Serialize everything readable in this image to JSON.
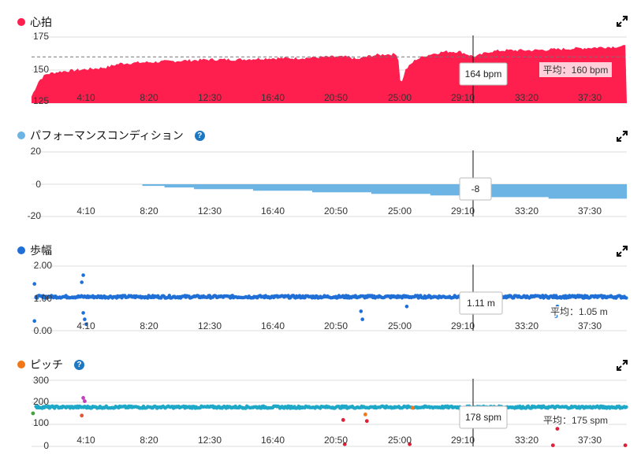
{
  "colors": {
    "hr": "#ff1f4e",
    "perf": "#6cb4e4",
    "stride": "#1f6fd6",
    "cadence": "#f07818",
    "help": "#1d78c4"
  },
  "panels": [
    {
      "title": "心拍",
      "help": false
    },
    {
      "title": "パフォーマンスコンディション",
      "help": true
    },
    {
      "title": "歩幅",
      "help": false
    },
    {
      "title": "ピッチ",
      "help": true
    }
  ],
  "chart_data": [
    {
      "type": "area",
      "title": "心拍",
      "ylim": [
        125,
        175
      ],
      "yticks": [
        "175",
        "150",
        "125"
      ],
      "xticks": [
        "4:10",
        "8:20",
        "12:30",
        "16:40",
        "20:50",
        "25:00",
        "29:10",
        "33:20",
        "37:30"
      ],
      "x_minutes": [
        0,
        0.5,
        1,
        2,
        3,
        4,
        5,
        6,
        8,
        10,
        12,
        14,
        16,
        18,
        20,
        21.5,
        22,
        23,
        24,
        24.8,
        25,
        25.3,
        26,
        27,
        28,
        29,
        30,
        31,
        32,
        34,
        36,
        38,
        40
      ],
      "y": [
        130,
        142,
        147,
        149,
        150,
        151,
        152,
        155,
        156,
        157,
        158,
        158,
        159,
        159,
        160,
        160,
        158,
        161,
        162,
        162,
        138,
        150,
        158,
        162,
        164,
        164,
        160,
        164,
        165,
        165,
        166,
        167,
        168
      ],
      "average_line": 160,
      "average_label": "平均：160 bpm",
      "cursor": {
        "label": "164 bpm"
      }
    },
    {
      "type": "area",
      "title": "パフォーマンスコンディション",
      "ylim": [
        -20,
        20
      ],
      "yticks": [
        "20",
        "0",
        "-20"
      ],
      "xticks": [
        "4:10",
        "8:20",
        "12:30",
        "16:40",
        "20:50",
        "25:00",
        "29:10",
        "33:20",
        "37:30"
      ],
      "x_minutes": [
        6,
        7.5,
        9,
        11,
        15,
        19,
        23,
        27,
        31,
        35,
        40
      ],
      "y": [
        0,
        -1,
        -2,
        -3,
        -4,
        -5,
        -6,
        -7,
        -8,
        -9,
        -9
      ],
      "cursor": {
        "label": "-8"
      }
    },
    {
      "type": "scatter",
      "title": "歩幅",
      "ylim": [
        0,
        2
      ],
      "yticks": [
        "2.00",
        "1.00",
        "0.00"
      ],
      "xticks": [
        "4:10",
        "8:20",
        "12:30",
        "16:40",
        "20:50",
        "25:00",
        "29:10",
        "33:20",
        "37:30"
      ],
      "baseline": 1.05,
      "outliers": [
        {
          "x": 3.4,
          "y": 1.5
        },
        {
          "x": 3.5,
          "y": 1.72
        },
        {
          "x": 3.5,
          "y": 0.55
        },
        {
          "x": 3.6,
          "y": 0.35
        },
        {
          "x": 3.7,
          "y": 0.2
        },
        {
          "x": 0.2,
          "y": 1.45
        },
        {
          "x": 0.2,
          "y": 0.3
        },
        {
          "x": 22.3,
          "y": 0.6
        },
        {
          "x": 22.4,
          "y": 0.35
        },
        {
          "x": 25.4,
          "y": 0.75
        },
        {
          "x": 35.5,
          "y": 0.45
        },
        {
          "x": 35.6,
          "y": 0.75
        }
      ],
      "average_label": "平均：1.05 m",
      "cursor": {
        "label": "1.11 m"
      }
    },
    {
      "type": "scatter",
      "title": "ピッチ",
      "ylim": [
        0,
        300
      ],
      "yticks": [
        "300",
        "200",
        "100",
        "0"
      ],
      "xticks": [
        "4:10",
        "8:20",
        "12:30",
        "16:40",
        "20:50",
        "25:00",
        "29:10",
        "33:20",
        "37:30"
      ],
      "baseline": 178,
      "outliers": [
        {
          "x": 3.5,
          "y": 220
        },
        {
          "x": 3.6,
          "y": 205
        },
        {
          "x": 3.4,
          "y": 140
        },
        {
          "x": 0.1,
          "y": 150
        },
        {
          "x": 21.1,
          "y": 120
        },
        {
          "x": 21.2,
          "y": 10
        },
        {
          "x": 22.6,
          "y": 145
        },
        {
          "x": 22.7,
          "y": 115
        },
        {
          "x": 25.6,
          "y": 10
        },
        {
          "x": 25.8,
          "y": 175
        },
        {
          "x": 35.6,
          "y": 80
        },
        {
          "x": 35.5,
          "y": 110
        },
        {
          "x": 40.2,
          "y": 5
        },
        {
          "x": 35.3,
          "y": 5
        }
      ],
      "average_label": "平均：175 spm",
      "cursor": {
        "label": "178 spm"
      }
    }
  ]
}
